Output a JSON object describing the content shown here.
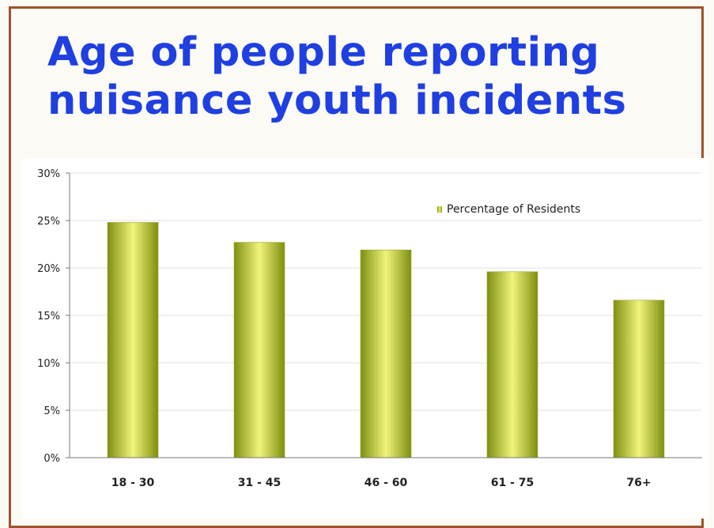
{
  "title_lines": [
    "Age of people reporting",
    "nuisance youth incidents"
  ],
  "colors": {
    "title": "#1f3fe0",
    "bar_edge": "#7f8f10",
    "bar_center": "#f0f47a",
    "frame": "#a0522d"
  },
  "chart_data": {
    "type": "bar",
    "categories": [
      "18 - 30",
      "31 - 45",
      "46 - 60",
      "61 - 75",
      "76+"
    ],
    "series": [
      {
        "name": "Percentage of Residents",
        "values": [
          24.8,
          22.7,
          21.9,
          19.6,
          16.6
        ]
      }
    ],
    "ylim": [
      0,
      30
    ],
    "yticks": [
      "0%",
      "5%",
      "10%",
      "15%",
      "20%",
      "25%",
      "30%"
    ],
    "ytick_values": [
      0,
      5,
      10,
      15,
      20,
      25,
      30
    ],
    "grid": true,
    "legend_position": "top-right"
  }
}
